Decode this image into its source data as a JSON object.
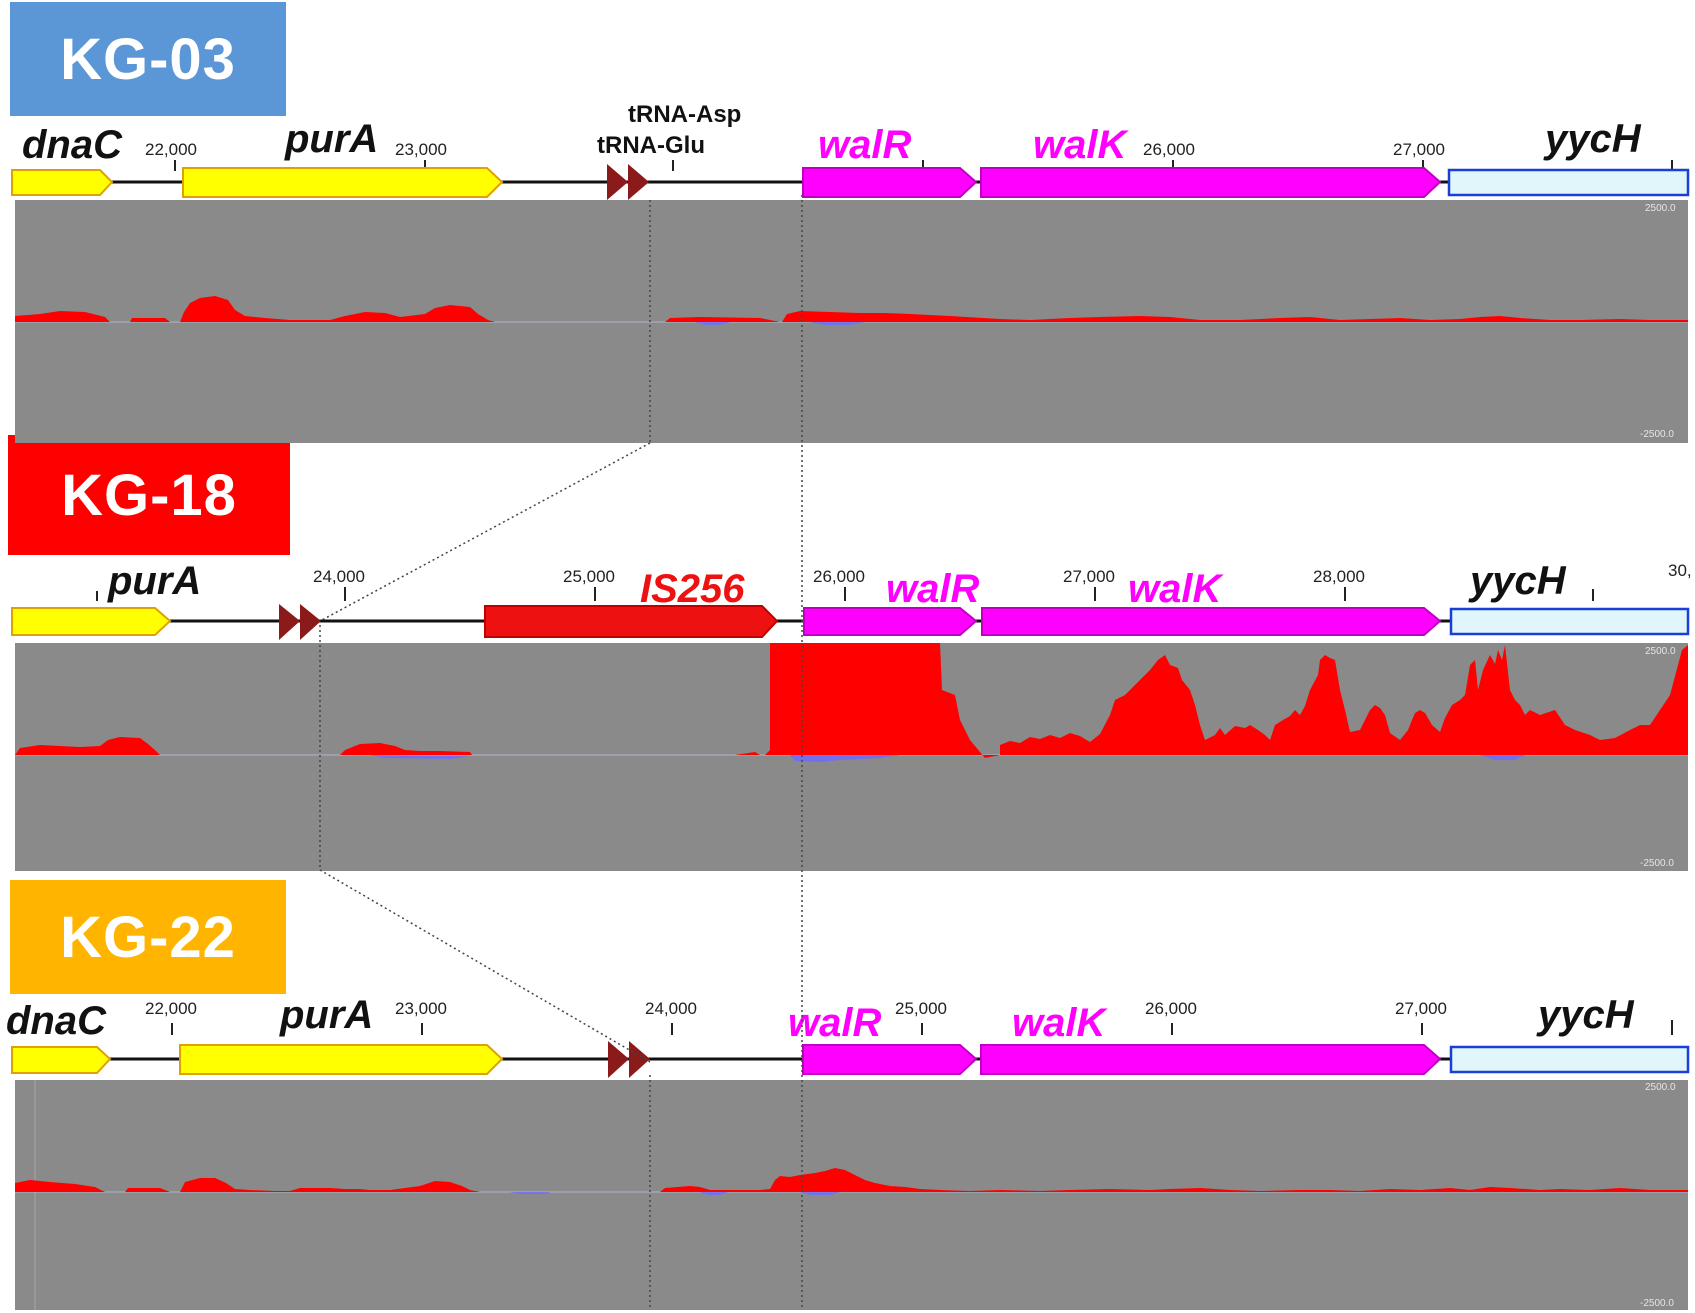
{
  "colors": {
    "kg03": "#5b97d6",
    "kg18": "#ff0000",
    "kg22": "#ffb400",
    "purA_dnaC": "#ffff00",
    "wal": "#ff00ff",
    "yycH": "#e0f6fb",
    "tRNA": "#8b1a1a",
    "IS256": "#ee1111",
    "coverage_fill": "#ff0000",
    "track_bg": "#8a8a8a"
  },
  "panels": [
    {
      "id": "kg03",
      "label": "KG-03",
      "genes": {
        "dnaC": "dnaC",
        "purA": "purA",
        "walR": "walR",
        "walK": "walK",
        "yycH": "yycH"
      },
      "trna": {
        "asp": "tRNA-Asp",
        "glu": "tRNA-Glu"
      },
      "ticks": [
        "22,000",
        "23,000",
        "26,000",
        "27,000"
      ],
      "axis": {
        "top": "2500.0",
        "bottom": "-2500.0"
      }
    },
    {
      "id": "kg18",
      "label": "KG-18",
      "genes": {
        "purA": "purA",
        "is": "IS256",
        "walR": "walR",
        "walK": "walK",
        "yycH": "yycH"
      },
      "ticks": [
        "24,000",
        "25,000",
        "26,000",
        "27,000",
        "28,000",
        "30,"
      ],
      "axis": {
        "top": "2500.0",
        "bottom": "-2500.0"
      }
    },
    {
      "id": "kg22",
      "label": "KG-22",
      "genes": {
        "dnaC": "dnaC",
        "purA": "purA",
        "walR": "walR",
        "walK": "walK",
        "yycH": "yycH"
      },
      "ticks": [
        "22,000",
        "23,000",
        "24,000",
        "25,000",
        "26,000",
        "27,000"
      ],
      "axis": {
        "top": "2500.0",
        "bottom": "-2500.0"
      }
    }
  ]
}
